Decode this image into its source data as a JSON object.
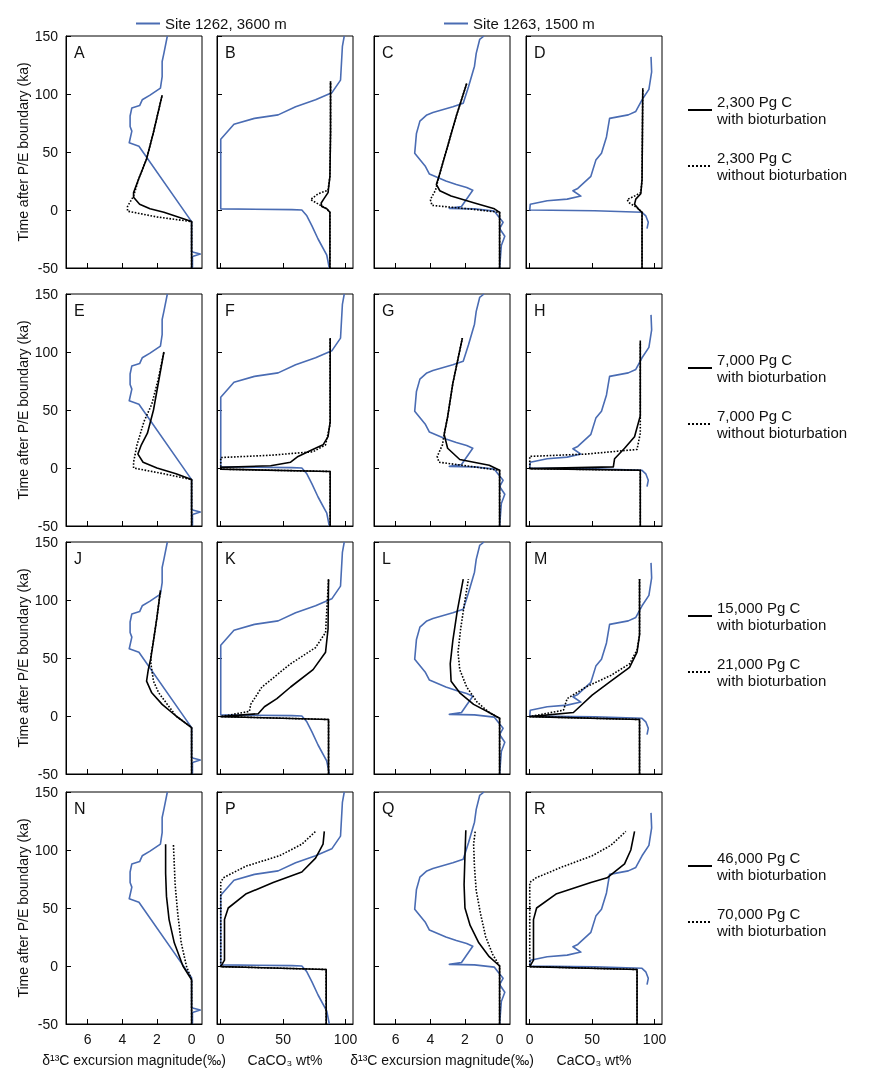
{
  "chart_data": [
    {
      "type": "line",
      "ylabel": "Time after P/E boundary (ka)",
      "xlim": [
        7.25,
        -0.6
      ],
      "xticks": [
        6,
        4,
        2,
        0
      ],
      "ylim": [
        -50,
        150
      ],
      "yticks": [
        -50,
        0,
        50,
        100,
        150
      ],
      "tick_labels": "y",
      "legend": "top",
      "annotations": [
        "A"
      ],
      "series": [
        {
          "name": "Site 1262, 3600 m",
          "color": "#4a6cb3",
          "line_style": "solid",
          "x": [
            -0.05,
            -0.05,
            -0.5,
            0,
            0,
            0,
            3.04,
            3.6,
            3.45,
            3.55,
            3.55,
            3.45,
            3.0,
            2.85,
            2.4,
            1.8,
            1.7,
            1.7,
            1.6,
            1.4
          ],
          "values": [
            -50,
            -40,
            -38,
            -36,
            -25,
            -10,
            55,
            58,
            68,
            72,
            81,
            88,
            90,
            95,
            99,
            105,
            115,
            128,
            135,
            150
          ]
        },
        {
          "color": "#000000",
          "line_style": "solid",
          "x": [
            0,
            0,
            1.6,
            2.4,
            3.0,
            3.35,
            3.35,
            3.05,
            2.6,
            2.2,
            1.7
          ],
          "values": [
            -50,
            -10,
            -2,
            1,
            5,
            11,
            15,
            27,
            44,
            67,
            99
          ]
        },
        {
          "color": "#000000",
          "line_style": "dotted",
          "x": [
            0,
            0,
            2,
            3.7,
            3.7,
            3.35,
            3.05,
            2.6,
            2.2,
            1.7
          ],
          "values": [
            -50,
            -10,
            -6,
            -1,
            3,
            12,
            27,
            44,
            67,
            99
          ]
        }
      ]
    },
    {
      "type": "line",
      "xlim": [
        -3,
        106
      ],
      "xticks": [
        0,
        50,
        100
      ],
      "ylim": [
        -50,
        150
      ],
      "yticks": [
        -50,
        0,
        50,
        100,
        150
      ],
      "tick_labels": false,
      "annotations": [
        "B"
      ],
      "series": [
        {
          "color": "#4a6cb3",
          "line_style": "solid",
          "x": [
            87,
            85,
            78,
            73,
            69,
            65,
            57,
            0,
            0,
            10.6,
            27,
            46,
            60,
            76,
            89,
            96,
            97.5,
            99
          ],
          "values": [
            -50,
            -39,
            -25,
            -13.5,
            -5,
            0,
            0.3,
            1,
            61,
            74,
            79,
            82,
            89,
            95,
            101,
            112,
            141,
            150
          ]
        },
        {
          "color": "#000000",
          "line_style": "solid",
          "x": [
            87.5,
            87.5,
            85,
            81,
            80.5,
            82.5,
            86,
            87.5,
            88,
            88
          ],
          "values": [
            -50,
            -2,
            1,
            3,
            6,
            9.4,
            15,
            29,
            67,
            111
          ]
        },
        {
          "color": "#000000",
          "line_style": "dotted",
          "x": [
            87.5,
            87.5,
            85,
            80,
            72,
            78,
            86,
            87.5,
            88,
            88
          ],
          "values": [
            -50,
            -2,
            1,
            4,
            9,
            14,
            17,
            29,
            67,
            111
          ]
        }
      ]
    },
    {
      "type": "line",
      "xlim": [
        7.25,
        -0.6
      ],
      "xticks": [
        6,
        4,
        2,
        0
      ],
      "ylim": [
        -50,
        150
      ],
      "yticks": [
        -50,
        0,
        50,
        100,
        150
      ],
      "tick_labels": false,
      "legend": "top",
      "annotations": [
        "C"
      ],
      "series": [
        {
          "name": "Site 1263, 1500 m",
          "color": "#4a6cb3",
          "line_style": "solid",
          "x": [
            0,
            -0.1,
            -0.3,
            0,
            -0.2,
            0.1,
            0.3,
            1.45,
            2.9,
            2.2,
            1.55,
            1.9,
            2.5,
            3.1,
            4.05,
            4.3,
            4.9,
            4.8,
            4.6,
            4.2,
            3.85,
            2.7,
            2.1,
            1.8,
            1.45,
            1.35,
            1.15,
            0.9
          ],
          "values": [
            -50,
            -30.6,
            -22.6,
            -16,
            -10.6,
            -5,
            -1,
            1,
            1.4,
            3,
            17,
            19.4,
            22,
            25,
            31,
            38,
            49,
            66,
            76.6,
            82,
            84,
            89,
            92,
            106,
            124,
            135,
            147,
            150
          ]
        },
        {
          "color": "#000000",
          "line_style": "solid",
          "x": [
            0,
            0,
            0.3,
            1.45,
            2.8,
            3.45,
            3.65,
            3.5,
            3.0,
            2.5,
            1.9
          ],
          "values": [
            -50,
            -2,
            1,
            6,
            12,
            16.6,
            22,
            29,
            55,
            81,
            109
          ]
        },
        {
          "color": "#000000",
          "line_style": "dotted",
          "x": [
            0,
            0,
            1.5,
            3.9,
            4,
            3.7,
            3.5,
            3.0,
            2.5,
            1.9
          ],
          "values": [
            -50,
            -2,
            0.5,
            4,
            9,
            17,
            29,
            55,
            81,
            109
          ]
        }
      ]
    },
    {
      "type": "line",
      "xlim": [
        -3,
        106
      ],
      "xticks": [
        0,
        50,
        100
      ],
      "ylim": [
        -50,
        150
      ],
      "yticks": [
        -50,
        0,
        50,
        100,
        150
      ],
      "tick_labels": false,
      "legend": "right",
      "annotations": [
        "D"
      ],
      "series": [
        {
          "color": "#4a6cb3",
          "line_style": "solid",
          "x": [
            94,
            95,
            93,
            90,
            52,
            0,
            0.4,
            14,
            30,
            41,
            34.6,
            38.5,
            49,
            53,
            57.5,
            61.5,
            64,
            79,
            85,
            90,
            95.5,
            97.7,
            97.2
          ],
          "values": [
            -16,
            -10.6,
            -5,
            -2,
            -0.6,
            0,
            5,
            8,
            9.4,
            12,
            16.6,
            18.6,
            29,
            43,
            49,
            63,
            79,
            82,
            85,
            95,
            104,
            119,
            132
          ]
        },
        {
          "name": "2,300 Pg C with bioturbation",
          "color": "#000000",
          "line_style": "solid",
          "x": [
            90,
            90,
            87,
            84,
            85,
            89,
            90,
            90.6
          ],
          "values": [
            -50,
            -2,
            1,
            5,
            9.4,
            14,
            26,
            105
          ]
        },
        {
          "name": "2,300 Pg C without bioturbation",
          "color": "#000000",
          "line_style": "dotted",
          "x": [
            90,
            90,
            86,
            80,
            78,
            84,
            89,
            90,
            90.6
          ],
          "values": [
            -50,
            -2,
            2,
            6,
            9,
            12,
            15,
            26,
            105
          ]
        }
      ]
    },
    {
      "type": "line",
      "ylabel": "Time after P/E boundary (ka)",
      "xlim": [
        7.25,
        -0.6
      ],
      "xticks": [
        6,
        4,
        2,
        0
      ],
      "ylim": [
        -50,
        150
      ],
      "yticks": [
        -50,
        0,
        50,
        100,
        150
      ],
      "tick_labels": "y",
      "annotations": [
        "E"
      ],
      "series": [
        {
          "color": "#4a6cb3",
          "line_style": "solid",
          "x": [
            -0.05,
            -0.05,
            -0.5,
            0,
            0,
            0,
            3.04,
            3.6,
            3.45,
            3.55,
            3.55,
            3.45,
            3.0,
            2.85,
            2.4,
            1.8,
            1.7,
            1.7,
            1.6,
            1.4
          ],
          "values": [
            -50,
            -40,
            -38,
            -36,
            -25,
            -10,
            55,
            58,
            68,
            72,
            81,
            88,
            90,
            95,
            99,
            105,
            115,
            128,
            135,
            150
          ]
        },
        {
          "color": "#000000",
          "line_style": "solid",
          "x": [
            0,
            0,
            0.9,
            2.0,
            2.8,
            3.1,
            2.9,
            2.55,
            2.2,
            1.9,
            1.6
          ],
          "values": [
            -50,
            -10,
            -5,
            0,
            5,
            12,
            20,
            30,
            50,
            75,
            100
          ]
        },
        {
          "color": "#000000",
          "line_style": "dotted",
          "x": [
            0,
            0,
            1.6,
            3.35,
            3.35,
            3.15,
            2.75,
            2.3,
            1.95,
            1.6
          ],
          "values": [
            -50,
            -10,
            -5,
            0,
            5,
            20,
            40,
            55,
            75,
            100
          ]
        }
      ]
    },
    {
      "type": "line",
      "xlim": [
        -3,
        106
      ],
      "xticks": [
        0,
        50,
        100
      ],
      "ylim": [
        -50,
        150
      ],
      "yticks": [
        -50,
        0,
        50,
        100,
        150
      ],
      "tick_labels": false,
      "annotations": [
        "F"
      ],
      "series": [
        {
          "color": "#4a6cb3",
          "line_style": "solid",
          "x": [
            87,
            85,
            78,
            73,
            69,
            65,
            57,
            0,
            0,
            10.6,
            27,
            46,
            60,
            76,
            89,
            96,
            97.5,
            99
          ],
          "values": [
            -50,
            -39,
            -25,
            -13.5,
            -5,
            0,
            0.3,
            1,
            61,
            74,
            79,
            82,
            89,
            95,
            101,
            112,
            141,
            150
          ]
        },
        {
          "color": "#000000",
          "line_style": "solid",
          "x": [
            87.7,
            87.7,
            0,
            0,
            40,
            56,
            62,
            72,
            82,
            86,
            87.7,
            87.7
          ],
          "values": [
            -50,
            -3,
            -1,
            0.5,
            2,
            5,
            10,
            15,
            20,
            27,
            40,
            112
          ]
        },
        {
          "color": "#000000",
          "line_style": "dotted",
          "x": [
            87.7,
            87.7,
            0,
            0,
            40,
            74,
            84,
            87.7,
            87.7
          ],
          "values": [
            -50,
            -3,
            -1,
            9,
            11,
            14,
            20,
            38,
            112
          ]
        }
      ]
    },
    {
      "type": "line",
      "xlim": [
        7.25,
        -0.6
      ],
      "xticks": [
        6,
        4,
        2,
        0
      ],
      "ylim": [
        -50,
        150
      ],
      "yticks": [
        -50,
        0,
        50,
        100,
        150
      ],
      "tick_labels": false,
      "annotations": [
        "G"
      ],
      "series": [
        {
          "color": "#4a6cb3",
          "line_style": "solid",
          "x": [
            0,
            -0.1,
            -0.3,
            0,
            -0.2,
            0.1,
            0.3,
            1.45,
            2.9,
            2.2,
            1.55,
            1.9,
            2.5,
            3.1,
            4.05,
            4.3,
            4.9,
            4.8,
            4.6,
            4.2,
            3.85,
            2.7,
            2.1,
            1.8,
            1.45,
            1.35,
            1.15,
            0.9
          ],
          "values": [
            -50,
            -30.6,
            -22.6,
            -16,
            -10.6,
            -5,
            -1,
            1,
            1.4,
            3,
            17,
            19.4,
            22,
            25,
            31,
            38,
            49,
            66,
            76.6,
            82,
            84,
            89,
            92,
            106,
            124,
            135,
            147,
            150
          ]
        },
        {
          "color": "#000000",
          "line_style": "solid",
          "x": [
            0,
            0,
            0.6,
            2.3,
            3.0,
            3.2,
            3.0,
            2.7,
            2.15
          ],
          "values": [
            -50,
            -2,
            2.4,
            7.3,
            17,
            29,
            44,
            73,
            112
          ]
        },
        {
          "color": "#000000",
          "line_style": "dotted",
          "x": [
            0,
            0,
            1.5,
            3.5,
            3.6,
            3.3,
            3.2,
            3.0,
            2.7,
            2.15
          ],
          "values": [
            -50,
            -2,
            1,
            5,
            10,
            20,
            29,
            44,
            73,
            112
          ]
        }
      ]
    },
    {
      "type": "line",
      "xlim": [
        -3,
        106
      ],
      "xticks": [
        0,
        50,
        100
      ],
      "ylim": [
        -50,
        150
      ],
      "yticks": [
        -50,
        0,
        50,
        100,
        150
      ],
      "tick_labels": false,
      "legend": "right",
      "annotations": [
        "H"
      ],
      "series": [
        {
          "color": "#4a6cb3",
          "line_style": "solid",
          "x": [
            94,
            95,
            93,
            90,
            52,
            0,
            0.4,
            14,
            30,
            41,
            34.6,
            38.5,
            49,
            53,
            57.5,
            61.5,
            64,
            79,
            85,
            90,
            95.5,
            97.7,
            97.2
          ],
          "values": [
            -16,
            -10.6,
            -5,
            -2,
            -0.6,
            0,
            5,
            8,
            9.4,
            12,
            16.6,
            18.6,
            29,
            43,
            49,
            63,
            79,
            82,
            85,
            95,
            104,
            119,
            132
          ]
        },
        {
          "name": "7,000 Pg C with bioturbation",
          "color": "#000000",
          "line_style": "solid",
          "x": [
            88.6,
            88.6,
            0,
            67,
            68,
            76,
            84,
            88.6,
            88.6
          ],
          "values": [
            -50,
            -2,
            -0.5,
            1,
            8,
            17,
            27,
            45,
            110
          ]
        },
        {
          "name": "7,000 Pg C without bioturbation",
          "color": "#000000",
          "line_style": "dotted",
          "x": [
            88.6,
            88.6,
            0,
            0,
            45,
            86,
            88.6,
            88.6
          ],
          "values": [
            -50,
            -2,
            -0.5,
            10,
            12,
            16,
            30,
            108
          ]
        }
      ]
    },
    {
      "type": "line",
      "ylabel": "Time after P/E boundary (ka)",
      "xlim": [
        7.25,
        -0.6
      ],
      "xticks": [
        6,
        4,
        2,
        0
      ],
      "ylim": [
        -50,
        150
      ],
      "yticks": [
        -50,
        0,
        50,
        100,
        150
      ],
      "tick_labels": "y",
      "annotations": [
        "J"
      ],
      "series": [
        {
          "color": "#4a6cb3",
          "line_style": "solid",
          "x": [
            -0.05,
            -0.05,
            -0.5,
            0,
            0,
            0,
            3.04,
            3.6,
            3.45,
            3.55,
            3.55,
            3.45,
            3.0,
            2.85,
            2.4,
            1.8,
            1.7,
            1.7,
            1.6,
            1.4
          ],
          "values": [
            -50,
            -40,
            -38,
            -36,
            -25,
            -10,
            55,
            58,
            68,
            72,
            81,
            88,
            90,
            95,
            99,
            105,
            115,
            128,
            135,
            150
          ]
        },
        {
          "color": "#000000",
          "line_style": "solid",
          "x": [
            0,
            0,
            0.9,
            1.7,
            2.3,
            2.6,
            2.5,
            2.35,
            2.2,
            2.0,
            1.8
          ],
          "values": [
            -50,
            -10,
            0,
            10,
            20,
            30,
            40,
            50,
            65,
            85,
            108
          ]
        },
        {
          "color": "#000000",
          "line_style": "dotted",
          "x": [
            0,
            0,
            0.9,
            1.4,
            1.9,
            2.2,
            2.35,
            2.35,
            2.2,
            2.0,
            1.8
          ],
          "values": [
            -50,
            -10,
            0,
            10,
            20,
            30,
            45,
            52,
            65,
            85,
            108
          ]
        }
      ]
    },
    {
      "type": "line",
      "xlim": [
        -3,
        106
      ],
      "xticks": [
        0,
        50,
        100
      ],
      "ylim": [
        -50,
        150
      ],
      "yticks": [
        -50,
        0,
        50,
        100,
        150
      ],
      "tick_labels": false,
      "annotations": [
        "K"
      ],
      "series": [
        {
          "color": "#4a6cb3",
          "line_style": "solid",
          "x": [
            87,
            85,
            78,
            73,
            69,
            65,
            57,
            0,
            0,
            10.6,
            27,
            46,
            60,
            76,
            89,
            96,
            97.5,
            99
          ],
          "values": [
            -50,
            -39,
            -25,
            -13.5,
            -5,
            0,
            0.3,
            1,
            61,
            74,
            79,
            82,
            89,
            95,
            101,
            112,
            141,
            150
          ]
        },
        {
          "color": "#000000",
          "line_style": "solid",
          "x": [
            86.4,
            86.4,
            0,
            30,
            35,
            45,
            56,
            74,
            84,
            86,
            86.4
          ],
          "values": [
            -50,
            -3,
            -0.5,
            2,
            8,
            15,
            25,
            40,
            55,
            75,
            118
          ]
        },
        {
          "color": "#000000",
          "line_style": "dotted",
          "x": [
            86.4,
            86.4,
            0,
            23,
            24,
            33,
            56,
            76,
            84,
            86.4
          ],
          "values": [
            -50,
            -3,
            -0.5,
            4,
            10,
            25,
            45,
            59,
            72,
            118
          ]
        }
      ]
    },
    {
      "type": "line",
      "xlim": [
        7.25,
        -0.6
      ],
      "xticks": [
        6,
        4,
        2,
        0
      ],
      "ylim": [
        -50,
        150
      ],
      "yticks": [
        -50,
        0,
        50,
        100,
        150
      ],
      "tick_labels": false,
      "annotations": [
        "L"
      ],
      "series": [
        {
          "color": "#4a6cb3",
          "line_style": "solid",
          "x": [
            0,
            -0.1,
            -0.3,
            0,
            -0.2,
            0.1,
            0.3,
            1.45,
            2.9,
            2.2,
            1.55,
            1.9,
            2.5,
            3.1,
            4.05,
            4.3,
            4.9,
            4.8,
            4.6,
            4.2,
            3.85,
            2.7,
            2.1,
            1.8,
            1.45,
            1.35,
            1.15,
            0.9
          ],
          "values": [
            -50,
            -30.6,
            -22.6,
            -16,
            -10.6,
            -5,
            -1,
            1,
            1.4,
            3,
            17,
            19.4,
            22,
            25,
            31,
            38,
            49,
            66,
            76.6,
            82,
            84,
            89,
            92,
            106,
            124,
            135,
            147,
            150
          ]
        },
        {
          "color": "#000000",
          "line_style": "solid",
          "x": [
            0,
            0,
            0.6,
            1.5,
            2.3,
            2.8,
            2.85,
            2.7,
            2.45,
            2.1
          ],
          "values": [
            -50,
            -2,
            3,
            10,
            20,
            30,
            45,
            65,
            90,
            118
          ]
        },
        {
          "color": "#000000",
          "line_style": "dotted",
          "x": [
            0,
            0,
            0.6,
            1.3,
            1.9,
            2.3,
            2.4,
            2.25,
            2.05,
            1.8
          ],
          "values": [
            -50,
            -2,
            3,
            12,
            25,
            40,
            55,
            75,
            95,
            118
          ]
        }
      ]
    },
    {
      "type": "line",
      "xlim": [
        -3,
        106
      ],
      "xticks": [
        0,
        50,
        100
      ],
      "ylim": [
        -50,
        150
      ],
      "yticks": [
        -50,
        0,
        50,
        100,
        150
      ],
      "tick_labels": false,
      "legend": "right",
      "annotations": [
        "M"
      ],
      "series": [
        {
          "color": "#4a6cb3",
          "line_style": "solid",
          "x": [
            94,
            95,
            93,
            90,
            52,
            0,
            0.4,
            14,
            30,
            41,
            34.6,
            38.5,
            49,
            53,
            57.5,
            61.5,
            64,
            79,
            85,
            90,
            95.5,
            97.7,
            97.2
          ],
          "values": [
            -16,
            -10.6,
            -5,
            -2,
            -0.6,
            0,
            5,
            8,
            9.4,
            12,
            16.6,
            18.6,
            29,
            43,
            49,
            63,
            79,
            82,
            85,
            95,
            104,
            119,
            132
          ]
        },
        {
          "name": "15,000 Pg C with bioturbation",
          "color": "#000000",
          "line_style": "solid",
          "x": [
            88,
            88,
            0,
            35,
            40,
            50,
            65,
            80,
            86,
            88,
            88
          ],
          "values": [
            -50,
            -3,
            -0.5,
            3,
            8,
            18,
            30,
            42,
            55,
            70,
            118
          ]
        },
        {
          "name": "21,000 Pg C with bioturbation",
          "color": "#000000",
          "line_style": "dotted",
          "x": [
            88,
            88,
            0,
            27,
            30,
            45,
            65,
            80,
            86,
            88,
            88
          ],
          "values": [
            -50,
            -3,
            -0.5,
            5,
            15,
            25,
            35,
            45,
            57,
            70,
            118
          ]
        }
      ]
    },
    {
      "type": "line",
      "ylabel": "Time after P/E boundary (ka)",
      "xlabel": "δ¹³C excursion magnitude(‰)",
      "xlim": [
        7.25,
        -0.6
      ],
      "xticks": [
        6,
        4,
        2,
        0
      ],
      "ylim": [
        -50,
        150
      ],
      "yticks": [
        -50,
        0,
        50,
        100,
        150
      ],
      "annotations": [
        "N"
      ],
      "series": [
        {
          "color": "#4a6cb3",
          "line_style": "solid",
          "x": [
            -0.05,
            -0.05,
            -0.5,
            0,
            0,
            0,
            3.04,
            3.6,
            3.45,
            3.55,
            3.55,
            3.45,
            3.0,
            2.85,
            2.4,
            1.8,
            1.7,
            1.7,
            1.6,
            1.4
          ],
          "values": [
            -50,
            -40,
            -38,
            -36,
            -25,
            -10,
            55,
            58,
            68,
            72,
            81,
            88,
            90,
            95,
            99,
            105,
            115,
            128,
            135,
            150
          ]
        },
        {
          "color": "#000000",
          "line_style": "solid",
          "x": [
            0,
            0,
            0.5,
            1.0,
            1.3,
            1.45,
            1.5,
            1.5
          ],
          "values": [
            -50,
            -12,
            0,
            20,
            40,
            60,
            80,
            105
          ]
        },
        {
          "color": "#000000",
          "line_style": "dotted",
          "x": [
            0,
            0,
            0.3,
            0.6,
            0.8,
            0.95,
            1.05
          ],
          "values": [
            -50,
            -12,
            0,
            20,
            45,
            70,
            105
          ]
        }
      ]
    },
    {
      "type": "line",
      "xlabel": "CaCO₃ wt%",
      "xlim": [
        -3,
        106
      ],
      "xticks": [
        0,
        50,
        100
      ],
      "ylim": [
        -50,
        150
      ],
      "yticks": [
        -50,
        0,
        50,
        100,
        150
      ],
      "tick_labels": "x",
      "annotations": [
        "P"
      ],
      "series": [
        {
          "color": "#4a6cb3",
          "line_style": "solid",
          "x": [
            87,
            85,
            78,
            73,
            69,
            65,
            57,
            0,
            0,
            10.6,
            27,
            46,
            60,
            76,
            89,
            96,
            97.5,
            99
          ],
          "values": [
            -50,
            -39,
            -25,
            -13.5,
            -5,
            0,
            0.3,
            1,
            61,
            74,
            79,
            82,
            89,
            95,
            101,
            112,
            141,
            150
          ]
        },
        {
          "color": "#000000",
          "line_style": "solid",
          "x": [
            84.5,
            84.5,
            0,
            3,
            3,
            6,
            20,
            42,
            65,
            76,
            82,
            83
          ],
          "values": [
            -50,
            -3,
            -0.5,
            5,
            40,
            50,
            62,
            72,
            81,
            93,
            105,
            116
          ]
        },
        {
          "color": "#000000",
          "line_style": "dotted",
          "x": [
            84.5,
            84.5,
            0,
            0,
            2,
            20,
            47,
            65,
            76
          ],
          "values": [
            -50,
            -3,
            -0.5,
            72,
            76,
            86,
            95,
            105,
            116
          ]
        }
      ]
    },
    {
      "type": "line",
      "xlabel": "δ¹³C excursion magnitude(‰)",
      "xlim": [
        7.25,
        -0.6
      ],
      "xticks": [
        6,
        4,
        2,
        0
      ],
      "ylim": [
        -50,
        150
      ],
      "yticks": [
        -50,
        0,
        50,
        100,
        150
      ],
      "tick_labels": "x",
      "annotations": [
        "Q"
      ],
      "series": [
        {
          "color": "#4a6cb3",
          "line_style": "solid",
          "x": [
            0,
            -0.1,
            -0.3,
            0,
            -0.2,
            0.1,
            0.3,
            1.45,
            2.9,
            2.2,
            1.55,
            1.9,
            2.5,
            3.1,
            4.05,
            4.3,
            4.9,
            4.8,
            4.6,
            4.2,
            3.85,
            2.7,
            2.1,
            1.8,
            1.45,
            1.35,
            1.15,
            0.9
          ],
          "values": [
            -50,
            -30.6,
            -22.6,
            -16,
            -10.6,
            -5,
            -1,
            1,
            1.4,
            3,
            17,
            19.4,
            22,
            25,
            31,
            38,
            49,
            66,
            76.6,
            82,
            84,
            89,
            92,
            106,
            124,
            135,
            147,
            150
          ]
        },
        {
          "color": "#000000",
          "line_style": "solid",
          "x": [
            0,
            0,
            0.6,
            1.2,
            1.7,
            2.0,
            2.05,
            2.0,
            1.95
          ],
          "values": [
            -50,
            0,
            8,
            20,
            35,
            50,
            70,
            95,
            117
          ]
        },
        {
          "color": "#000000",
          "line_style": "dotted",
          "x": [
            0,
            0,
            0.4,
            0.8,
            1.1,
            1.35,
            1.45,
            1.5,
            1.4
          ],
          "values": [
            -50,
            0,
            10,
            25,
            45,
            65,
            85,
            105,
            117
          ]
        }
      ]
    },
    {
      "type": "line",
      "xlabel": "CaCO₃ wt%",
      "xlim": [
        -3,
        106
      ],
      "xticks": [
        0,
        50,
        100
      ],
      "ylim": [
        -50,
        150
      ],
      "yticks": [
        -50,
        0,
        50,
        100,
        150
      ],
      "tick_labels": "x",
      "legend": "right",
      "annotations": [
        "R"
      ],
      "series": [
        {
          "color": "#4a6cb3",
          "line_style": "solid",
          "x": [
            94,
            95,
            93,
            90,
            52,
            0,
            0.4,
            14,
            30,
            41,
            34.6,
            38.5,
            49,
            53,
            57.5,
            61.5,
            64,
            79,
            85,
            90,
            95.5,
            97.7,
            97.2
          ],
          "values": [
            -16,
            -10.6,
            -5,
            -2,
            -0.6,
            0,
            5,
            8,
            9.4,
            12,
            16.6,
            18.6,
            29,
            43,
            49,
            63,
            79,
            82,
            85,
            95,
            104,
            119,
            132
          ]
        },
        {
          "name": "46,000 Pg C with bioturbation",
          "color": "#000000",
          "line_style": "solid",
          "x": [
            86,
            86,
            0,
            3,
            3,
            5.5,
            21,
            49,
            62,
            76,
            81,
            84
          ],
          "values": [
            -50,
            -3,
            -0.5,
            5,
            40,
            50,
            62,
            72,
            76,
            88,
            100,
            116
          ]
        },
        {
          "name": "70,000 Pg C with bioturbation",
          "color": "#000000",
          "line_style": "dotted",
          "x": [
            86,
            86,
            0,
            0,
            5,
            25,
            50,
            65,
            77
          ],
          "values": [
            -50,
            -3,
            -0.5,
            72,
            76,
            85,
            95,
            104,
            116
          ]
        }
      ]
    }
  ]
}
